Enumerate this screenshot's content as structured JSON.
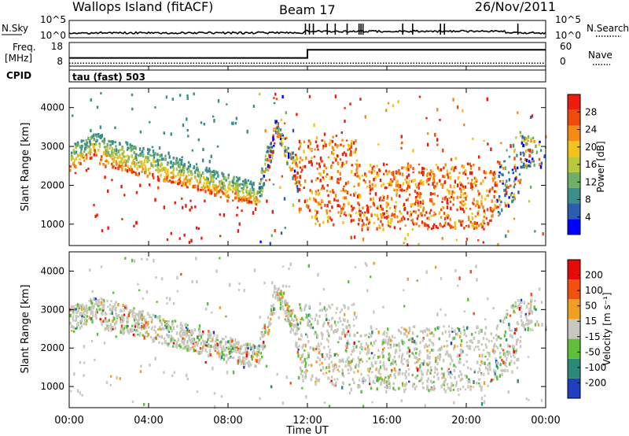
{
  "header": {
    "station": "Wallops Island (fitACF)",
    "beam": "Beam 17",
    "date": "26/Nov/2011"
  },
  "chart_data": [
    {
      "type": "line",
      "name": "noise-panel",
      "left_label": "N.Sky",
      "right_label": "N.Search",
      "left_ticks": [
        "10^5",
        "10^0"
      ],
      "right_ticks": [
        "10^5",
        "10^0"
      ],
      "spikes_x_hours": [
        11.9,
        12.1,
        12.3,
        13.0,
        13.4,
        14.0,
        14.6,
        14.7,
        14.8,
        16.8,
        17.3,
        18.7,
        18.9,
        22.6
      ]
    },
    {
      "type": "line",
      "name": "frequency-panel",
      "left_label_line1": "Freq.",
      "left_label_line2": "[MHz]",
      "right_label": "Nave",
      "left_ticks": [
        "18",
        "8"
      ],
      "right_ticks": [
        "60",
        "0"
      ],
      "freq_mhz": {
        "x": [
          0,
          12,
          12,
          24
        ],
        "y": [
          10.5,
          10.5,
          15,
          15
        ]
      },
      "nave": {
        "x": [
          0,
          24
        ],
        "y": [
          4,
          4
        ]
      }
    },
    {
      "type": "text",
      "name": "cpid-strip",
      "label": "CPID",
      "program": "tau (fast) 503"
    },
    {
      "type": "heatmap",
      "name": "power",
      "ylabel": "Slant Range [km]",
      "yticks": [
        1000,
        2000,
        3000,
        4000
      ],
      "ylim": [
        450,
        4500
      ],
      "xlim": [
        0,
        24
      ],
      "colorbar_label": "Power [dB]",
      "colorbar_ticks": [
        "28",
        "24",
        "20",
        "16",
        "12",
        "8",
        "4"
      ],
      "colors": [
        "#0000ff",
        "#2a5fb0",
        "#3c8e8c",
        "#6fb067",
        "#b8c93d",
        "#f3c21c",
        "#f68a12",
        "#f04a0c",
        "#ee1c0c"
      ]
    },
    {
      "type": "heatmap",
      "name": "velocity",
      "ylabel": "Slant Range [km]",
      "yticks": [
        1000,
        2000,
        3000,
        4000
      ],
      "ylim": [
        450,
        4500
      ],
      "xlim": [
        0,
        24
      ],
      "colorbar_label": "Velocity [m s⁻¹]",
      "colorbar_ticks": [
        "200",
        "100",
        "50",
        "15",
        "-15",
        "-50",
        "-100",
        "-200"
      ],
      "colors": [
        "#1f3fbf",
        "#2a8a7a",
        "#5fbf3a",
        "#c8c8c0",
        "#f0a020",
        "#f05010",
        "#e80a0a"
      ]
    }
  ],
  "xaxis": {
    "label": "Time UT",
    "ticks": [
      "00:00",
      "04:00",
      "08:00",
      "12:00",
      "16:00",
      "20:00",
      "00:00"
    ]
  }
}
